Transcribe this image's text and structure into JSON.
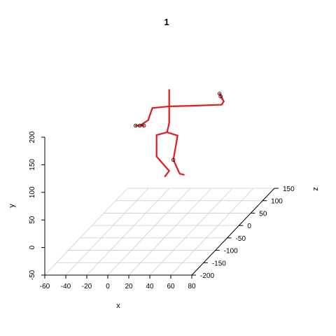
{
  "chart_data": {
    "type": "scatter",
    "title": "1",
    "xlabel": "x",
    "ylabel": "y",
    "zlabel": "z",
    "x_ticks": [
      "-60",
      "-40",
      "-20",
      "0",
      "20",
      "40",
      "60",
      "80"
    ],
    "y_ticks": [
      "-50",
      "0",
      "50",
      "100",
      "150",
      "200"
    ],
    "z_ticks": [
      "-200",
      "-150",
      "-100",
      "-50",
      "0",
      "50",
      "100",
      "150"
    ],
    "xlim": [
      -60,
      80
    ],
    "ylim": [
      -50,
      200
    ],
    "zlim": [
      -200,
      150
    ],
    "grid": true,
    "figure_color": "#e31a1c",
    "joints": [
      {
        "name": "head",
        "x": 18,
        "y": 205,
        "z": -20
      },
      {
        "name": "neck",
        "x": 18,
        "y": 175,
        "z": -20
      },
      {
        "name": "left_shoulder",
        "x": 2,
        "y": 172,
        "z": -20
      },
      {
        "name": "left_elbow",
        "x": -2,
        "y": 150,
        "z": -20
      },
      {
        "name": "left_hand",
        "x": -10,
        "y": 140,
        "z": -20
      },
      {
        "name": "left_hand_tip",
        "x": -14,
        "y": 140,
        "z": -20
      },
      {
        "name": "left_thumb",
        "x": -6,
        "y": 140,
        "z": -20
      },
      {
        "name": "right_shoulder",
        "x": 40,
        "y": 176,
        "z": -20
      },
      {
        "name": "right_elbow",
        "x": 68,
        "y": 178,
        "z": -20
      },
      {
        "name": "right_hand",
        "x": 70,
        "y": 184,
        "z": -20
      },
      {
        "name": "right_hand_tip",
        "x": 66,
        "y": 198,
        "z": -20
      },
      {
        "name": "right_thumb",
        "x": 67,
        "y": 193,
        "z": -20
      },
      {
        "name": "spine_mid",
        "x": 18,
        "y": 145,
        "z": -20
      },
      {
        "name": "hip",
        "x": 16,
        "y": 128,
        "z": -20
      },
      {
        "name": "left_hip",
        "x": 6,
        "y": 123,
        "z": -20
      },
      {
        "name": "left_knee",
        "x": 6,
        "y": 84,
        "z": -20
      },
      {
        "name": "left_ankle",
        "x": 18,
        "y": 58,
        "z": -20
      },
      {
        "name": "left_foot",
        "x": 14,
        "y": 48,
        "z": -20
      },
      {
        "name": "right_hip",
        "x": 26,
        "y": 122,
        "z": -20
      },
      {
        "name": "right_knee",
        "x": 22,
        "y": 78,
        "z": -20
      },
      {
        "name": "right_ankle",
        "x": 28,
        "y": 53,
        "z": -20
      },
      {
        "name": "right_foot",
        "x": 32,
        "y": 51,
        "z": -20
      }
    ],
    "bones": [
      [
        "head",
        "neck"
      ],
      [
        "neck",
        "left_shoulder"
      ],
      [
        "left_shoulder",
        "left_elbow"
      ],
      [
        "left_elbow",
        "left_hand"
      ],
      [
        "left_hand",
        "left_hand_tip"
      ],
      [
        "left_hand",
        "left_thumb"
      ],
      [
        "neck",
        "right_shoulder"
      ],
      [
        "right_shoulder",
        "right_elbow"
      ],
      [
        "right_elbow",
        "right_hand"
      ],
      [
        "right_hand",
        "right_hand_tip"
      ],
      [
        "right_hand",
        "right_thumb"
      ],
      [
        "neck",
        "spine_mid"
      ],
      [
        "spine_mid",
        "hip"
      ],
      [
        "hip",
        "left_hip"
      ],
      [
        "left_hip",
        "left_knee"
      ],
      [
        "left_knee",
        "left_ankle"
      ],
      [
        "left_ankle",
        "left_foot"
      ],
      [
        "hip",
        "right_hip"
      ],
      [
        "right_hip",
        "right_knee"
      ],
      [
        "right_knee",
        "right_ankle"
      ],
      [
        "right_ankle",
        "right_foot"
      ]
    ],
    "marked_joints": [
      "left_hand",
      "left_hand_tip",
      "left_thumb",
      "right_hand_tip",
      "right_thumb",
      "right_knee"
    ]
  }
}
